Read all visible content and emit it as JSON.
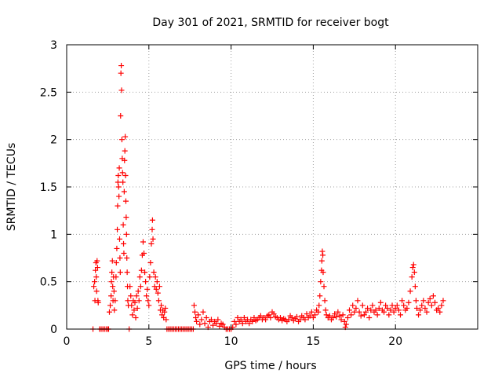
{
  "chart_data": {
    "type": "scatter",
    "title": "Day 301 of 2021, SRMTID for receiver bogt",
    "xlabel": "GPS time / hours",
    "ylabel": "SRMTID / TECUs",
    "xlim": [
      0,
      25
    ],
    "ylim": [
      0,
      3
    ],
    "grid": true,
    "marker": "+",
    "colors": {
      "points": "#ff0000",
      "grid": "#a0a0a0",
      "axis": "#000000"
    },
    "x_ticks": [
      {
        "value": 0,
        "label": "0"
      },
      {
        "value": 5,
        "label": "5"
      },
      {
        "value": 10,
        "label": "10"
      },
      {
        "value": 15,
        "label": "15"
      },
      {
        "value": 20,
        "label": "20"
      }
    ],
    "y_ticks": [
      {
        "value": 0,
        "label": "0"
      },
      {
        "value": 0.5,
        "label": "0.5"
      },
      {
        "value": 1,
        "label": "1"
      },
      {
        "value": 1.5,
        "label": "1.5"
      },
      {
        "value": 2,
        "label": "2"
      },
      {
        "value": 2.5,
        "label": "2.5"
      },
      {
        "value": 3,
        "label": "3"
      }
    ],
    "series": [
      {
        "name": "SRMTID",
        "points": [
          [
            1.6,
            0.0
          ],
          [
            1.65,
            0.45
          ],
          [
            1.7,
            0.5
          ],
          [
            1.72,
            0.3
          ],
          [
            1.75,
            0.62
          ],
          [
            1.78,
            0.7
          ],
          [
            1.8,
            0.55
          ],
          [
            1.82,
            0.4
          ],
          [
            1.85,
            0.72
          ],
          [
            1.88,
            0.65
          ],
          [
            1.9,
            0.3
          ],
          [
            1.92,
            0.28
          ],
          [
            2.0,
            0.0
          ],
          [
            2.1,
            0.0
          ],
          [
            2.2,
            0.0
          ],
          [
            2.3,
            0.0
          ],
          [
            2.4,
            0.0
          ],
          [
            2.5,
            0.0
          ],
          [
            2.55,
            0.0
          ],
          [
            2.6,
            0.18
          ],
          [
            2.65,
            0.25
          ],
          [
            2.7,
            0.35
          ],
          [
            2.72,
            0.5
          ],
          [
            2.75,
            0.6
          ],
          [
            2.78,
            0.72
          ],
          [
            2.8,
            0.45
          ],
          [
            2.82,
            0.3
          ],
          [
            2.85,
            0.55
          ],
          [
            2.88,
            0.4
          ],
          [
            2.9,
            0.2
          ],
          [
            2.95,
            0.3
          ],
          [
            3.0,
            0.55
          ],
          [
            3.02,
            0.7
          ],
          [
            3.05,
            0.85
          ],
          [
            3.08,
            1.05
          ],
          [
            3.1,
            1.3
          ],
          [
            3.12,
            1.55
          ],
          [
            3.14,
            1.62
          ],
          [
            3.16,
            1.5
          ],
          [
            3.18,
            1.4
          ],
          [
            3.2,
            1.7
          ],
          [
            3.22,
            0.95
          ],
          [
            3.24,
            0.75
          ],
          [
            3.26,
            0.6
          ],
          [
            3.28,
            2.25
          ],
          [
            3.3,
            2.7
          ],
          [
            3.32,
            2.78
          ],
          [
            3.34,
            2.52
          ],
          [
            3.36,
            2.0
          ],
          [
            3.38,
            1.8
          ],
          [
            3.4,
            1.65
          ],
          [
            3.42,
            1.55
          ],
          [
            3.44,
            1.1
          ],
          [
            3.46,
            0.9
          ],
          [
            3.48,
            0.8
          ],
          [
            3.5,
            1.45
          ],
          [
            3.52,
            1.78
          ],
          [
            3.54,
            1.88
          ],
          [
            3.56,
            2.03
          ],
          [
            3.58,
            1.62
          ],
          [
            3.6,
            1.35
          ],
          [
            3.62,
            1.18
          ],
          [
            3.64,
            1.0
          ],
          [
            3.66,
            0.75
          ],
          [
            3.68,
            0.6
          ],
          [
            3.7,
            0.45
          ],
          [
            3.72,
            0.3
          ],
          [
            3.75,
            0.25
          ],
          [
            3.8,
            0.0
          ],
          [
            3.85,
            0.45
          ],
          [
            3.9,
            0.35
          ],
          [
            3.95,
            0.25
          ],
          [
            4.0,
            0.15
          ],
          [
            4.05,
            0.3
          ],
          [
            4.1,
            0.2
          ],
          [
            4.15,
            0.28
          ],
          [
            4.2,
            0.12
          ],
          [
            4.25,
            0.35
          ],
          [
            4.3,
            0.22
          ],
          [
            4.35,
            0.4
          ],
          [
            4.4,
            0.3
          ],
          [
            4.45,
            0.55
          ],
          [
            4.5,
            0.45
          ],
          [
            4.55,
            0.62
          ],
          [
            4.6,
            0.78
          ],
          [
            4.65,
            0.92
          ],
          [
            4.7,
            0.8
          ],
          [
            4.75,
            0.6
          ],
          [
            4.8,
            0.5
          ],
          [
            4.85,
            0.35
          ],
          [
            4.9,
            0.42
          ],
          [
            4.95,
            0.3
          ],
          [
            5.0,
            0.25
          ],
          [
            5.05,
            0.55
          ],
          [
            5.1,
            0.7
          ],
          [
            5.15,
            0.9
          ],
          [
            5.2,
            1.05
          ],
          [
            5.22,
            1.15
          ],
          [
            5.25,
            0.95
          ],
          [
            5.3,
            0.6
          ],
          [
            5.35,
            0.45
          ],
          [
            5.4,
            0.55
          ],
          [
            5.45,
            0.42
          ],
          [
            5.5,
            0.5
          ],
          [
            5.55,
            0.38
          ],
          [
            5.6,
            0.3
          ],
          [
            5.65,
            0.45
          ],
          [
            5.7,
            0.2
          ],
          [
            5.75,
            0.25
          ],
          [
            5.8,
            0.15
          ],
          [
            5.85,
            0.2
          ],
          [
            5.9,
            0.12
          ],
          [
            5.95,
            0.18
          ],
          [
            6.0,
            0.22
          ],
          [
            6.05,
            0.1
          ],
          [
            6.1,
            0.0
          ],
          [
            6.2,
            0.0
          ],
          [
            6.3,
            0.0
          ],
          [
            6.4,
            0.0
          ],
          [
            6.5,
            0.0
          ],
          [
            6.6,
            0.0
          ],
          [
            6.7,
            0.0
          ],
          [
            6.8,
            0.0
          ],
          [
            6.9,
            0.0
          ],
          [
            7.0,
            0.0
          ],
          [
            7.1,
            0.0
          ],
          [
            7.2,
            0.0
          ],
          [
            7.3,
            0.0
          ],
          [
            7.4,
            0.0
          ],
          [
            7.5,
            0.0
          ],
          [
            7.6,
            0.0
          ],
          [
            7.7,
            0.0
          ],
          [
            7.75,
            0.25
          ],
          [
            7.8,
            0.18
          ],
          [
            7.85,
            0.12
          ],
          [
            7.9,
            0.08
          ],
          [
            8.0,
            0.15
          ],
          [
            8.1,
            0.05
          ],
          [
            8.2,
            0.1
          ],
          [
            8.3,
            0.18
          ],
          [
            8.4,
            0.06
          ],
          [
            8.5,
            0.12
          ],
          [
            8.6,
            0.02
          ],
          [
            8.7,
            0.08
          ],
          [
            8.8,
            0.1
          ],
          [
            8.9,
            0.04
          ],
          [
            9.0,
            0.08
          ],
          [
            9.1,
            0.06
          ],
          [
            9.2,
            0.1
          ],
          [
            9.3,
            0.03
          ],
          [
            9.4,
            0.06
          ],
          [
            9.5,
            0.05
          ],
          [
            9.6,
            0.02
          ],
          [
            9.7,
            0.0
          ],
          [
            9.8,
            0.0
          ],
          [
            9.9,
            0.0
          ],
          [
            10.0,
            0.0
          ],
          [
            10.1,
            0.02
          ],
          [
            10.2,
            0.08
          ],
          [
            10.3,
            0.05
          ],
          [
            10.4,
            0.12
          ],
          [
            10.5,
            0.08
          ],
          [
            10.6,
            0.1
          ],
          [
            10.7,
            0.06
          ],
          [
            10.8,
            0.12
          ],
          [
            10.9,
            0.08
          ],
          [
            11.0,
            0.1
          ],
          [
            11.1,
            0.06
          ],
          [
            11.2,
            0.1
          ],
          [
            11.3,
            0.08
          ],
          [
            11.4,
            0.12
          ],
          [
            11.5,
            0.09
          ],
          [
            11.6,
            0.1
          ],
          [
            11.7,
            0.12
          ],
          [
            11.8,
            0.14
          ],
          [
            11.9,
            0.1
          ],
          [
            12.0,
            0.12
          ],
          [
            12.1,
            0.1
          ],
          [
            12.2,
            0.14
          ],
          [
            12.3,
            0.15
          ],
          [
            12.4,
            0.12
          ],
          [
            12.5,
            0.18
          ],
          [
            12.6,
            0.16
          ],
          [
            12.7,
            0.13
          ],
          [
            12.8,
            0.12
          ],
          [
            12.9,
            0.1
          ],
          [
            13.0,
            0.12
          ],
          [
            13.1,
            0.09
          ],
          [
            13.2,
            0.11
          ],
          [
            13.3,
            0.1
          ],
          [
            13.4,
            0.08
          ],
          [
            13.5,
            0.1
          ],
          [
            13.6,
            0.14
          ],
          [
            13.7,
            0.12
          ],
          [
            13.8,
            0.09
          ],
          [
            13.9,
            0.11
          ],
          [
            14.0,
            0.13
          ],
          [
            14.1,
            0.08
          ],
          [
            14.2,
            0.1
          ],
          [
            14.3,
            0.14
          ],
          [
            14.4,
            0.12
          ],
          [
            14.5,
            0.1
          ],
          [
            14.6,
            0.16
          ],
          [
            14.7,
            0.12
          ],
          [
            14.8,
            0.14
          ],
          [
            14.9,
            0.18
          ],
          [
            15.0,
            0.12
          ],
          [
            15.1,
            0.15
          ],
          [
            15.2,
            0.2
          ],
          [
            15.3,
            0.18
          ],
          [
            15.35,
            0.25
          ],
          [
            15.4,
            0.35
          ],
          [
            15.45,
            0.5
          ],
          [
            15.5,
            0.62
          ],
          [
            15.52,
            0.72
          ],
          [
            15.55,
            0.82
          ],
          [
            15.58,
            0.78
          ],
          [
            15.6,
            0.6
          ],
          [
            15.65,
            0.45
          ],
          [
            15.7,
            0.3
          ],
          [
            15.75,
            0.2
          ],
          [
            15.8,
            0.15
          ],
          [
            15.9,
            0.12
          ],
          [
            16.0,
            0.14
          ],
          [
            16.1,
            0.1
          ],
          [
            16.2,
            0.12
          ],
          [
            16.3,
            0.16
          ],
          [
            16.4,
            0.13
          ],
          [
            16.5,
            0.18
          ],
          [
            16.6,
            0.14
          ],
          [
            16.7,
            0.1
          ],
          [
            16.8,
            0.15
          ],
          [
            16.9,
            0.08
          ],
          [
            16.95,
            0.02
          ],
          [
            17.0,
            0.05
          ],
          [
            17.1,
            0.12
          ],
          [
            17.2,
            0.2
          ],
          [
            17.3,
            0.15
          ],
          [
            17.4,
            0.25
          ],
          [
            17.5,
            0.18
          ],
          [
            17.6,
            0.22
          ],
          [
            17.7,
            0.3
          ],
          [
            17.8,
            0.18
          ],
          [
            17.9,
            0.14
          ],
          [
            18.0,
            0.25
          ],
          [
            18.1,
            0.15
          ],
          [
            18.2,
            0.18
          ],
          [
            18.3,
            0.22
          ],
          [
            18.4,
            0.12
          ],
          [
            18.5,
            0.2
          ],
          [
            18.6,
            0.25
          ],
          [
            18.7,
            0.18
          ],
          [
            18.8,
            0.2
          ],
          [
            18.9,
            0.15
          ],
          [
            19.0,
            0.22
          ],
          [
            19.1,
            0.28
          ],
          [
            19.2,
            0.2
          ],
          [
            19.3,
            0.18
          ],
          [
            19.4,
            0.25
          ],
          [
            19.5,
            0.22
          ],
          [
            19.6,
            0.15
          ],
          [
            19.7,
            0.2
          ],
          [
            19.8,
            0.25
          ],
          [
            19.9,
            0.18
          ],
          [
            20.0,
            0.22
          ],
          [
            20.1,
            0.25
          ],
          [
            20.2,
            0.2
          ],
          [
            20.3,
            0.15
          ],
          [
            20.4,
            0.3
          ],
          [
            20.5,
            0.25
          ],
          [
            20.6,
            0.2
          ],
          [
            20.7,
            0.22
          ],
          [
            20.8,
            0.28
          ],
          [
            20.9,
            0.4
          ],
          [
            21.0,
            0.55
          ],
          [
            21.05,
            0.65
          ],
          [
            21.1,
            0.68
          ],
          [
            21.15,
            0.6
          ],
          [
            21.2,
            0.45
          ],
          [
            21.25,
            0.3
          ],
          [
            21.3,
            0.22
          ],
          [
            21.4,
            0.15
          ],
          [
            21.5,
            0.2
          ],
          [
            21.6,
            0.25
          ],
          [
            21.7,
            0.3
          ],
          [
            21.8,
            0.22
          ],
          [
            21.9,
            0.18
          ],
          [
            22.0,
            0.28
          ],
          [
            22.1,
            0.32
          ],
          [
            22.2,
            0.25
          ],
          [
            22.3,
            0.35
          ],
          [
            22.4,
            0.28
          ],
          [
            22.5,
            0.2
          ],
          [
            22.6,
            0.22
          ],
          [
            22.7,
            0.18
          ],
          [
            22.8,
            0.25
          ],
          [
            22.9,
            0.3
          ]
        ]
      }
    ]
  }
}
